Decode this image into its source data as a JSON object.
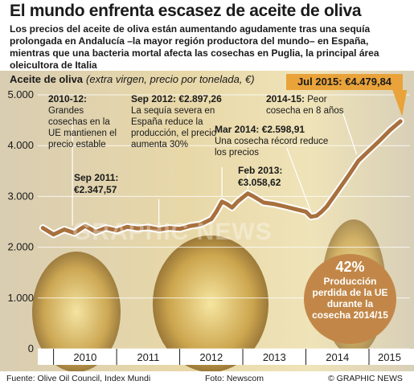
{
  "title": "El mundo enfrenta escasez de aceite de oliva",
  "subtitle": "Los precios del aceite de oliva están aumentando agudamente tras una sequía prolongada en Andalucía –la mayor región productora del mundo– en España, mientras que una bacteria mortal afecta las cosechas en Puglia, la principal área oleicultora de Italia",
  "chart_label": "Aceite de oliva",
  "chart_unit": "(extra virgen, precio por tonelada, €)",
  "callout": "Jul 2015: €4.479,84",
  "annotations": [
    {
      "head": "2010-12:",
      "body": "Grandes cosechas en la UE mantienen el precio estable"
    },
    {
      "head": "Sep 2012: €2.897,26",
      "body": "La sequía severa en España reduce la producción, el precio aumenta 30%"
    },
    {
      "head": "2014-15:",
      "body": "Peor cosecha en 8 años"
    },
    {
      "head": "Sep 2011:",
      "body": "€2.347,57"
    },
    {
      "head": "Mar 2014: €2.598,91",
      "body": "Una cosecha récord reduce los precios"
    },
    {
      "head": "Feb 2013:",
      "body": "€3.058,62"
    }
  ],
  "infobox": {
    "percent": "42%",
    "text": "Producción perdida de la UE durante la cosecha 2014/15"
  },
  "watermark": "GRAPHIC NEWS",
  "footer": {
    "source": "Fuente: Olive Oil Council, Index Mundi",
    "photo": "Foto: Newscom",
    "credit": "© GRAPHIC NEWS"
  },
  "colors": {
    "line": "#a8703d",
    "line_outline": "#ffffff",
    "callout": "#e9a33a",
    "infobox": "#c28748",
    "grid": "#ffffff"
  },
  "chart_data": {
    "type": "line",
    "ylim": [
      0,
      5000
    ],
    "yticks": [
      "0",
      "1.000",
      "2.000",
      "3.000",
      "4.000",
      "5.000"
    ],
    "xlim": [
      2009.75,
      2015.65
    ],
    "xticks": [
      {
        "label": "2010",
        "pos": 2010.0
      },
      {
        "label": "2011",
        "pos": 2011.0
      },
      {
        "label": "2012",
        "pos": 2012.0
      },
      {
        "label": "2013",
        "pos": 2013.0
      },
      {
        "label": "2014",
        "pos": 2014.0
      },
      {
        "label": "2015",
        "pos": 2015.0
      }
    ],
    "series": [
      {
        "x": [
          2009.83,
          2010.0,
          2010.17,
          2010.33,
          2010.5,
          2010.67,
          2010.83,
          2011.0,
          2011.17,
          2011.33,
          2011.5,
          2011.67,
          2011.83,
          2012.0,
          2012.17,
          2012.33,
          2012.5,
          2012.58,
          2012.67,
          2012.75,
          2012.83,
          2012.92,
          2013.0,
          2013.08,
          2013.17,
          2013.33,
          2013.5,
          2013.67,
          2013.83,
          2014.0,
          2014.08,
          2014.17,
          2014.25,
          2014.33,
          2014.5,
          2014.67,
          2014.83,
          2015.0,
          2015.17,
          2015.33,
          2015.5
        ],
        "y": [
          2380,
          2250,
          2350,
          2280,
          2420,
          2300,
          2380,
          2330,
          2400,
          2370,
          2390,
          2347.57,
          2380,
          2360,
          2420,
          2450,
          2550,
          2700,
          2897.26,
          2850,
          2780,
          2900,
          2980,
          3058.62,
          3000,
          2880,
          2850,
          2800,
          2750,
          2700,
          2598.91,
          2620,
          2700,
          2800,
          3100,
          3400,
          3700,
          3900,
          4100,
          4300,
          4479.84
        ]
      }
    ]
  }
}
